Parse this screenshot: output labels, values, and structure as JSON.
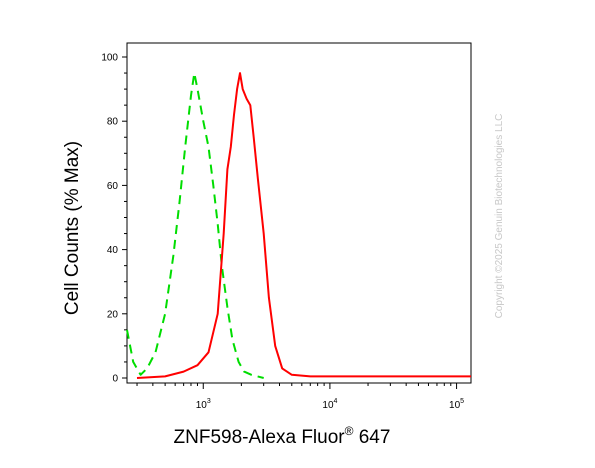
{
  "chart_data": {
    "type": "line",
    "xlabel": "ZNF598-Alexa Fluor",
    "xlabel_superscript": "®",
    "xlabel_suffix": " 647",
    "ylabel": "Cell Counts (% Max)",
    "x_scale": "log",
    "xlim": [
      250,
      130000
    ],
    "ylim": [
      0,
      100
    ],
    "y_ticks": [
      0,
      20,
      40,
      60,
      80,
      100
    ],
    "x_tick_labels": [
      {
        "value": 1000,
        "base": "10",
        "exp": "3"
      },
      {
        "value": 10000,
        "base": "10",
        "exp": "4"
      },
      {
        "value": 100000,
        "base": "10",
        "exp": "5"
      }
    ],
    "grid": false,
    "legend": "none",
    "series": [
      {
        "color": "#00dd00",
        "style": "dashed",
        "points": [
          [
            250,
            15
          ],
          [
            280,
            5
          ],
          [
            320,
            1
          ],
          [
            360,
            3
          ],
          [
            420,
            8
          ],
          [
            500,
            20
          ],
          [
            580,
            38
          ],
          [
            650,
            55
          ],
          [
            720,
            72
          ],
          [
            800,
            88
          ],
          [
            850,
            95
          ],
          [
            900,
            90
          ],
          [
            1000,
            80
          ],
          [
            1100,
            72
          ],
          [
            1200,
            60
          ],
          [
            1300,
            48
          ],
          [
            1400,
            35
          ],
          [
            1550,
            22
          ],
          [
            1700,
            12
          ],
          [
            1900,
            5
          ],
          [
            2100,
            2
          ],
          [
            2400,
            1
          ],
          [
            3000,
            0
          ]
        ]
      },
      {
        "color": "#ff0000",
        "style": "solid",
        "points": [
          [
            300,
            0
          ],
          [
            500,
            0.5
          ],
          [
            700,
            2
          ],
          [
            900,
            4
          ],
          [
            1100,
            8
          ],
          [
            1300,
            20
          ],
          [
            1450,
            45
          ],
          [
            1550,
            65
          ],
          [
            1650,
            72
          ],
          [
            1750,
            82
          ],
          [
            1850,
            90
          ],
          [
            1950,
            95
          ],
          [
            2050,
            90
          ],
          [
            2200,
            87
          ],
          [
            2350,
            85
          ],
          [
            2500,
            75
          ],
          [
            2700,
            62
          ],
          [
            3000,
            45
          ],
          [
            3300,
            25
          ],
          [
            3700,
            10
          ],
          [
            4200,
            3
          ],
          [
            5000,
            1
          ],
          [
            7000,
            0.5
          ],
          [
            20000,
            0.5
          ],
          [
            130000,
            0.5
          ]
        ]
      }
    ]
  },
  "watermark": "Copyright ©2025 Genuin Biotechnologies LLC"
}
